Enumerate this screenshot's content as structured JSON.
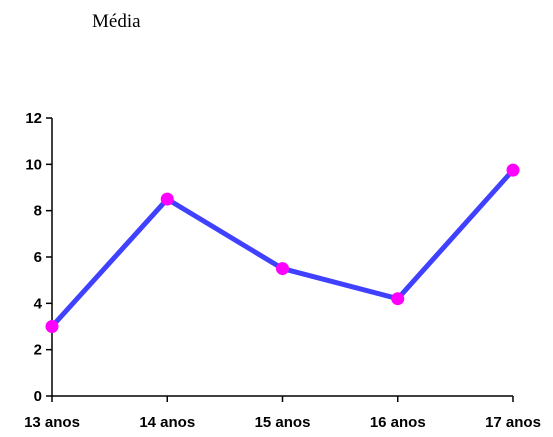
{
  "chart_data": {
    "type": "line",
    "title": "Média",
    "categories": [
      "13 anos",
      "14 anos",
      "15 anos",
      "16 anos",
      "17 anos"
    ],
    "series": [
      {
        "values": [
          3.0,
          8.5,
          5.5,
          4.2,
          9.75
        ]
      }
    ],
    "ylim": [
      0,
      12
    ],
    "y_ticks": [
      "0",
      "2",
      "4",
      "6",
      "8",
      "10",
      "12"
    ],
    "xlabel": "",
    "ylabel": "",
    "grid": false,
    "legend": "none",
    "colors": {
      "line": "#4040ff",
      "marker": "#ff00ff",
      "axis": "#000000"
    }
  }
}
